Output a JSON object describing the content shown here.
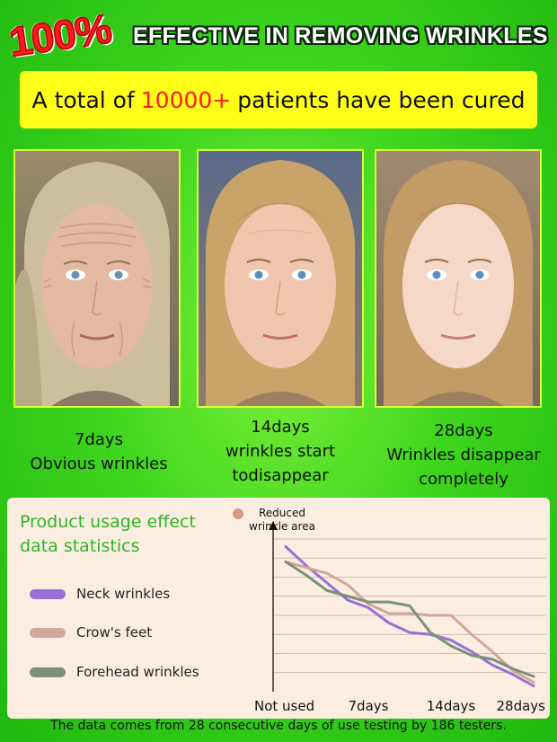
{
  "headline": {
    "percent": "100%",
    "text": "EFFECTIVE IN REMOVING WRINKLES"
  },
  "banner": {
    "prefix": "A total of",
    "highlight": "10000+",
    "suffix": "patients have been cured",
    "highlight_color": "#ff1a1a",
    "background": "#ffff1a"
  },
  "photos": [
    {
      "caption_lines": [
        "7days",
        "Obvious wrinkles"
      ]
    },
    {
      "caption_lines": [
        "14days",
        "wrinkles start",
        "todisappear"
      ]
    },
    {
      "caption_lines": [
        "28days",
        "Wrinkles disappear",
        "completely"
      ]
    }
  ],
  "stats": {
    "title_lines": [
      "Product usage effect",
      "data statistics"
    ],
    "legend": [
      {
        "label": "Neck wrinkles",
        "color": "#9a6fd6"
      },
      {
        "label": "Crow's feet",
        "color": "#d2a79b"
      },
      {
        "label": "Forehead wrinkles",
        "color": "#7a9278"
      }
    ]
  },
  "chart_data": {
    "type": "line",
    "ylabel": "Reduced wrinkle area",
    "ylabel_lines": [
      "Reduced",
      "wrinkle area"
    ],
    "categories": [
      "Not used",
      "7days",
      "14days",
      "28days"
    ],
    "x": [
      0,
      0.5,
      1,
      1.5,
      2,
      2.5,
      3,
      3.5,
      4,
      4.5,
      5,
      5.5,
      6
    ],
    "tick_positions": [
      0,
      2,
      4,
      6
    ],
    "ylim": [
      0,
      8
    ],
    "grid": true,
    "series": [
      {
        "name": "Neck wrinkles",
        "color": "#9a6fd6",
        "values": [
          7.6,
          6.6,
          5.7,
          4.8,
          4.4,
          3.6,
          3.1,
          3.0,
          2.7,
          2.1,
          1.4,
          0.9,
          0.3
        ]
      },
      {
        "name": "Crow's feet",
        "color": "#d2a79b",
        "values": [
          6.8,
          6.5,
          6.2,
          5.6,
          4.6,
          4.1,
          4.1,
          4.0,
          4.0,
          3.0,
          2.1,
          1.1,
          0.5
        ]
      },
      {
        "name": "Forehead wrinkles",
        "color": "#7a9278",
        "values": [
          6.8,
          6.1,
          5.3,
          5.0,
          4.7,
          4.7,
          4.5,
          3.1,
          2.4,
          1.9,
          1.7,
          1.2,
          0.8
        ]
      }
    ]
  },
  "footer": {
    "text": "The data comes from 28 consecutive days of use testing by 186 testers."
  }
}
